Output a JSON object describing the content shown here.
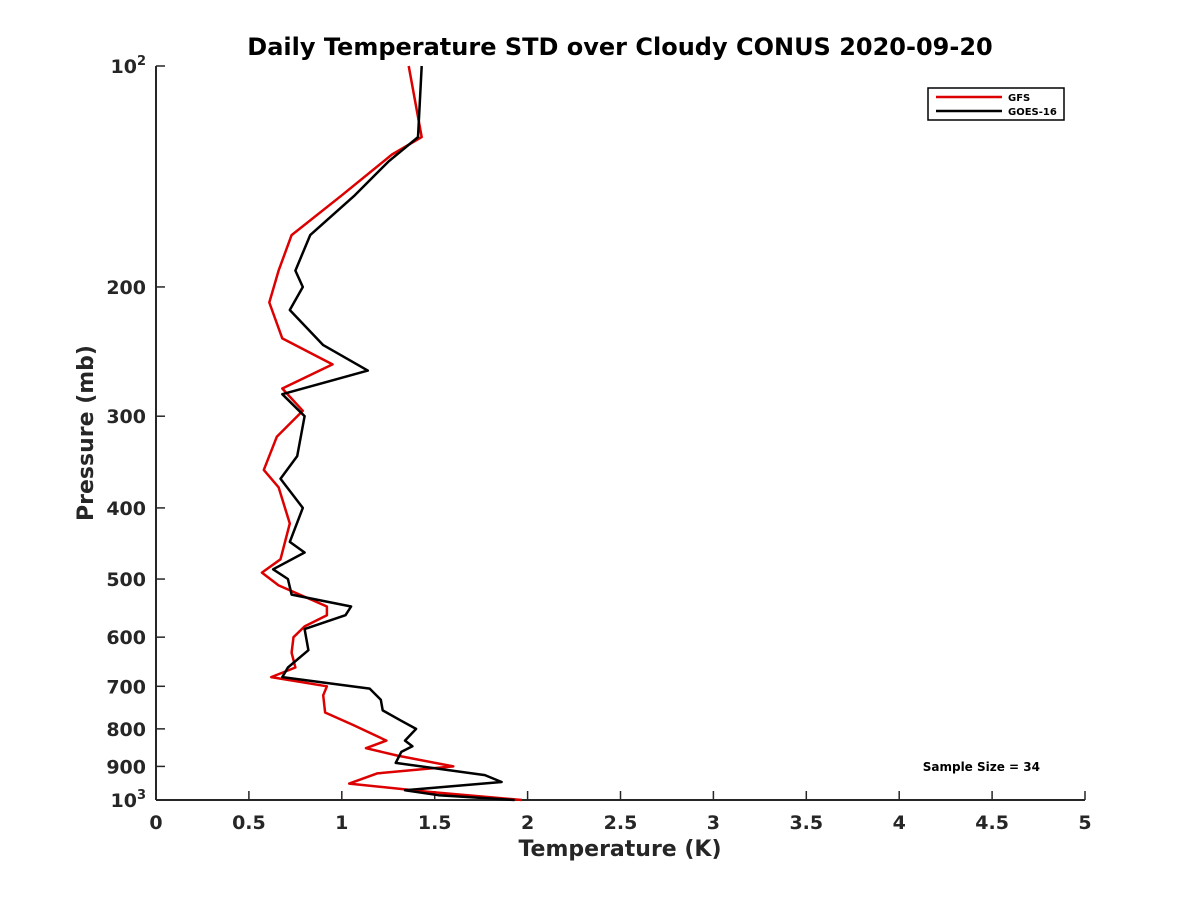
{
  "chart_data": {
    "type": "line",
    "title": "Daily Temperature STD over Cloudy CONUS 2020-09-20",
    "xlabel": "Temperature (K)",
    "ylabel": "Pressure (mb)",
    "xlim": [
      0,
      5
    ],
    "ylim": [
      100,
      1000
    ],
    "y_scale": "log",
    "y_reversed": true,
    "grid": false,
    "legend_position": "top-right",
    "x_ticks": [
      0,
      0.5,
      1,
      1.5,
      2,
      2.5,
      3,
      3.5,
      4,
      4.5,
      5
    ],
    "x_tick_labels": [
      "0",
      "0.5",
      "1",
      "1.5",
      "2",
      "2.5",
      "3",
      "3.5",
      "4",
      "4.5",
      "5"
    ],
    "y_ticks": [
      {
        "value": 100,
        "base": "10",
        "exp": "2",
        "label": ""
      },
      {
        "value": 200,
        "label": "200"
      },
      {
        "value": 300,
        "label": "300"
      },
      {
        "value": 400,
        "label": "400"
      },
      {
        "value": 500,
        "label": "500"
      },
      {
        "value": 600,
        "label": "600"
      },
      {
        "value": 700,
        "label": "700"
      },
      {
        "value": 800,
        "label": "800"
      },
      {
        "value": 900,
        "label": "900"
      },
      {
        "value": 1000,
        "base": "10",
        "exp": "3",
        "label": ""
      }
    ],
    "annotation": "Sample Size = 34",
    "series": [
      {
        "name": "GFS",
        "color": "#dd0000",
        "points": [
          [
            1.36,
            100
          ],
          [
            1.43,
            125
          ],
          [
            1.27,
            132
          ],
          [
            1.0,
            150
          ],
          [
            0.73,
            170
          ],
          [
            0.66,
            190
          ],
          [
            0.61,
            210
          ],
          [
            0.68,
            235
          ],
          [
            0.95,
            255
          ],
          [
            0.68,
            275
          ],
          [
            0.79,
            295
          ],
          [
            0.65,
            320
          ],
          [
            0.58,
            355
          ],
          [
            0.66,
            375
          ],
          [
            0.72,
            420
          ],
          [
            0.67,
            470
          ],
          [
            0.57,
            490
          ],
          [
            0.66,
            510
          ],
          [
            0.92,
            545
          ],
          [
            0.92,
            560
          ],
          [
            0.8,
            580
          ],
          [
            0.74,
            600
          ],
          [
            0.73,
            630
          ],
          [
            0.75,
            660
          ],
          [
            0.62,
            680
          ],
          [
            0.92,
            700
          ],
          [
            0.9,
            720
          ],
          [
            0.91,
            760
          ],
          [
            1.06,
            790
          ],
          [
            1.24,
            830
          ],
          [
            1.13,
            850
          ],
          [
            1.3,
            870
          ],
          [
            1.6,
            900
          ],
          [
            1.19,
            920
          ],
          [
            1.04,
            950
          ],
          [
            1.47,
            975
          ],
          [
            1.97,
            1000
          ]
        ]
      },
      {
        "name": "GOES-16",
        "color": "#000000",
        "points": [
          [
            1.43,
            100
          ],
          [
            1.41,
            125
          ],
          [
            1.25,
            135
          ],
          [
            1.07,
            150
          ],
          [
            0.83,
            170
          ],
          [
            0.75,
            190
          ],
          [
            0.79,
            200
          ],
          [
            0.72,
            215
          ],
          [
            0.9,
            240
          ],
          [
            1.14,
            260
          ],
          [
            0.68,
            280
          ],
          [
            0.8,
            300
          ],
          [
            0.76,
            340
          ],
          [
            0.67,
            365
          ],
          [
            0.79,
            400
          ],
          [
            0.72,
            445
          ],
          [
            0.8,
            460
          ],
          [
            0.63,
            485
          ],
          [
            0.71,
            500
          ],
          [
            0.73,
            525
          ],
          [
            1.05,
            545
          ],
          [
            1.02,
            560
          ],
          [
            0.8,
            585
          ],
          [
            0.82,
            625
          ],
          [
            0.71,
            660
          ],
          [
            0.68,
            680
          ],
          [
            1.15,
            705
          ],
          [
            1.21,
            730
          ],
          [
            1.22,
            755
          ],
          [
            1.32,
            780
          ],
          [
            1.4,
            800
          ],
          [
            1.34,
            830
          ],
          [
            1.38,
            845
          ],
          [
            1.32,
            860
          ],
          [
            1.29,
            890
          ],
          [
            1.77,
            925
          ],
          [
            1.86,
            945
          ],
          [
            1.34,
            970
          ],
          [
            1.52,
            985
          ],
          [
            1.93,
            1000
          ]
        ]
      }
    ]
  }
}
